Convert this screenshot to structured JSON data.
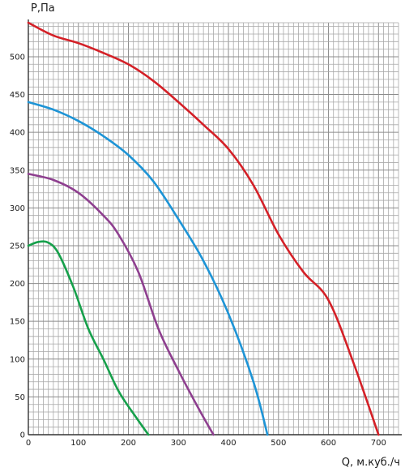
{
  "chart_data": {
    "type": "line",
    "title": "",
    "xlabel": "Q, м.куб./ч",
    "ylabel": "P,Па",
    "xlim": [
      0,
      740
    ],
    "ylim": [
      0,
      545
    ],
    "grid": true,
    "x_ticks": [
      0,
      100,
      200,
      300,
      400,
      500,
      600,
      700
    ],
    "y_ticks": [
      0,
      50,
      100,
      150,
      200,
      250,
      300,
      350,
      400,
      450,
      500
    ],
    "series": [
      {
        "color": "#d42027",
        "points": [
          [
            0,
            545
          ],
          [
            50,
            528
          ],
          [
            100,
            518
          ],
          [
            150,
            505
          ],
          [
            200,
            490
          ],
          [
            250,
            468
          ],
          [
            300,
            440
          ],
          [
            350,
            410
          ],
          [
            400,
            378
          ],
          [
            450,
            330
          ],
          [
            500,
            265
          ],
          [
            550,
            215
          ],
          [
            600,
            178
          ],
          [
            650,
            95
          ],
          [
            700,
            0
          ]
        ]
      },
      {
        "color": "#1d94d6",
        "points": [
          [
            0,
            440
          ],
          [
            50,
            430
          ],
          [
            100,
            415
          ],
          [
            150,
            395
          ],
          [
            200,
            370
          ],
          [
            250,
            335
          ],
          [
            300,
            285
          ],
          [
            350,
            230
          ],
          [
            400,
            160
          ],
          [
            450,
            70
          ],
          [
            478,
            0
          ]
        ]
      },
      {
        "color": "#8e3f8f",
        "points": [
          [
            0,
            345
          ],
          [
            50,
            337
          ],
          [
            100,
            320
          ],
          [
            150,
            290
          ],
          [
            180,
            265
          ],
          [
            220,
            215
          ],
          [
            260,
            140
          ],
          [
            300,
            85
          ],
          [
            340,
            35
          ],
          [
            370,
            0
          ]
        ]
      },
      {
        "color": "#16a04b",
        "points": [
          [
            0,
            250
          ],
          [
            20,
            255
          ],
          [
            40,
            254
          ],
          [
            60,
            240
          ],
          [
            90,
            195
          ],
          [
            120,
            140
          ],
          [
            150,
            100
          ],
          [
            180,
            58
          ],
          [
            210,
            28
          ],
          [
            240,
            0
          ]
        ]
      }
    ]
  }
}
